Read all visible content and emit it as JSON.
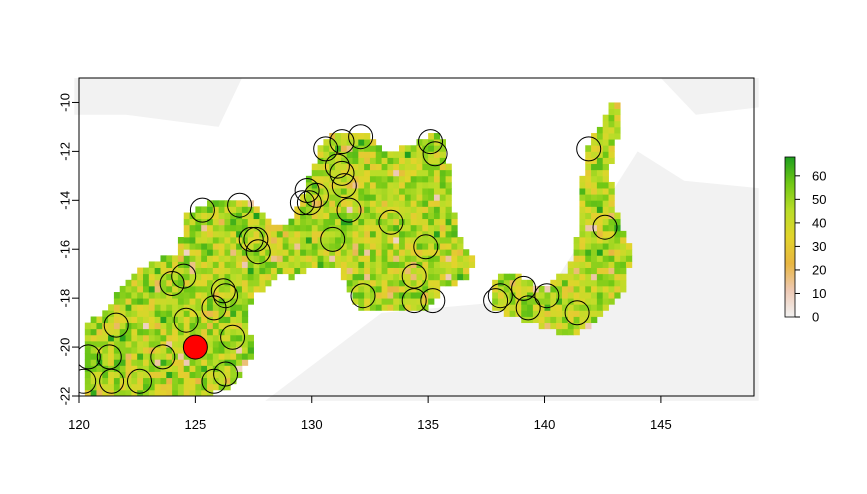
{
  "chart_data": {
    "type": "heatmap",
    "title": "",
    "xlabel": "",
    "ylabel": "",
    "xlim": [
      120,
      149
    ],
    "ylim": [
      -22,
      -9
    ],
    "x_ticks": [
      120,
      125,
      130,
      135,
      140,
      145
    ],
    "y_ticks": [
      -22,
      -20,
      -18,
      -16,
      -14,
      -12,
      -10
    ],
    "x_tick_labels": [
      "120",
      "125",
      "130",
      "135",
      "140",
      "145"
    ],
    "y_tick_labels": [
      "-22",
      "-20",
      "-18",
      "-16",
      "-14",
      "-12",
      "-10"
    ],
    "colorbar": {
      "min": 0,
      "max": 68,
      "ticks": [
        0,
        10,
        20,
        30,
        40,
        50,
        60
      ],
      "tick_labels": [
        "0",
        "10",
        "20",
        "30",
        "40",
        "50",
        "60"
      ],
      "colors": [
        "#f2f2f2",
        "#eec9b4",
        "#e8b642",
        "#e2d42b",
        "#b9dd28",
        "#71c815",
        "#1e9e1e"
      ]
    },
    "background_value": 0,
    "land_regions": [
      {
        "name": "western",
        "polygon": [
          [
            120.2,
            -21.9
          ],
          [
            120.2,
            -19.2
          ],
          [
            121.2,
            -18.4
          ],
          [
            122.0,
            -17.2
          ],
          [
            123.2,
            -16.5
          ],
          [
            124.2,
            -16.2
          ],
          [
            124.6,
            -14.6
          ],
          [
            125.8,
            -14.0
          ],
          [
            127.3,
            -14.0
          ],
          [
            128.2,
            -14.8
          ],
          [
            129.0,
            -15.8
          ],
          [
            128.6,
            -17.2
          ],
          [
            127.6,
            -17.8
          ],
          [
            127.2,
            -18.8
          ],
          [
            127.6,
            -20.3
          ],
          [
            127.0,
            -21.0
          ],
          [
            126.4,
            -21.8
          ],
          [
            125.4,
            -21.9
          ],
          [
            124.0,
            -21.9
          ]
        ]
      },
      {
        "name": "central",
        "polygon": [
          [
            128.0,
            -15.2
          ],
          [
            129.2,
            -14.8
          ],
          [
            130.2,
            -12.2
          ],
          [
            130.6,
            -11.4
          ],
          [
            132.2,
            -11.2
          ],
          [
            133.2,
            -12.0
          ],
          [
            134.4,
            -11.7
          ],
          [
            135.5,
            -11.2
          ],
          [
            136.0,
            -12.8
          ],
          [
            136.2,
            -15.4
          ],
          [
            137.0,
            -16.4
          ],
          [
            136.6,
            -17.2
          ],
          [
            135.6,
            -17.6
          ],
          [
            134.8,
            -18.6
          ],
          [
            133.6,
            -18.4
          ],
          [
            132.4,
            -18.6
          ],
          [
            131.8,
            -18.2
          ],
          [
            131.2,
            -16.8
          ],
          [
            130.2,
            -16.6
          ],
          [
            129.0,
            -17.2
          ],
          [
            128.2,
            -16.4
          ]
        ]
      },
      {
        "name": "eastern",
        "polygon": [
          [
            137.8,
            -17.2
          ],
          [
            138.6,
            -17.0
          ],
          [
            140.0,
            -17.6
          ],
          [
            141.0,
            -16.8
          ],
          [
            141.5,
            -15.2
          ],
          [
            141.6,
            -13.2
          ],
          [
            141.9,
            -11.6
          ],
          [
            142.6,
            -10.6
          ],
          [
            143.1,
            -9.7
          ],
          [
            143.2,
            -11.2
          ],
          [
            142.8,
            -12.8
          ],
          [
            143.2,
            -14.8
          ],
          [
            143.8,
            -16.0
          ],
          [
            143.5,
            -17.5
          ],
          [
            142.6,
            -18.6
          ],
          [
            141.8,
            -19.3
          ],
          [
            140.8,
            -19.5
          ],
          [
            139.8,
            -19.1
          ],
          [
            138.8,
            -18.8
          ],
          [
            137.8,
            -18.4
          ]
        ]
      }
    ],
    "open_circles": [
      [
        120.4,
        -20.4
      ],
      [
        120.2,
        -21.4
      ],
      [
        121.3,
        -20.4
      ],
      [
        121.4,
        -21.4
      ],
      [
        121.6,
        -19.1
      ],
      [
        122.6,
        -21.4
      ],
      [
        123.6,
        -20.4
      ],
      [
        124.0,
        -17.4
      ],
      [
        124.5,
        -17.1
      ],
      [
        124.6,
        -18.9
      ],
      [
        125.3,
        -14.4
      ],
      [
        125.8,
        -18.4
      ],
      [
        126.2,
        -17.7
      ],
      [
        126.3,
        -17.9
      ],
      [
        126.6,
        -19.6
      ],
      [
        126.3,
        -21.1
      ],
      [
        125.8,
        -21.4
      ],
      [
        126.9,
        -14.2
      ],
      [
        127.4,
        -15.6
      ],
      [
        127.6,
        -15.6
      ],
      [
        127.7,
        -16.1
      ],
      [
        129.6,
        -14.1
      ],
      [
        129.8,
        -13.6
      ],
      [
        129.9,
        -14.1
      ],
      [
        130.2,
        -13.8
      ],
      [
        130.6,
        -11.9
      ],
      [
        130.9,
        -15.6
      ],
      [
        131.1,
        -12.6
      ],
      [
        131.3,
        -11.6
      ],
      [
        131.3,
        -12.9
      ],
      [
        131.4,
        -13.4
      ],
      [
        131.6,
        -14.4
      ],
      [
        132.1,
        -11.4
      ],
      [
        132.2,
        -17.9
      ],
      [
        133.4,
        -14.9
      ],
      [
        134.4,
        -17.1
      ],
      [
        134.4,
        -18.1
      ],
      [
        134.9,
        -15.9
      ],
      [
        135.1,
        -11.6
      ],
      [
        135.3,
        -12.1
      ],
      [
        135.2,
        -18.1
      ],
      [
        137.9,
        -18.1
      ],
      [
        138.1,
        -17.9
      ],
      [
        139.1,
        -17.6
      ],
      [
        139.3,
        -18.4
      ],
      [
        140.1,
        -17.9
      ],
      [
        141.4,
        -18.6
      ],
      [
        141.9,
        -11.9
      ],
      [
        142.6,
        -15.1
      ]
    ],
    "highlight_point": {
      "x": 125.0,
      "y": -20.0,
      "color": "#ff0000"
    }
  }
}
